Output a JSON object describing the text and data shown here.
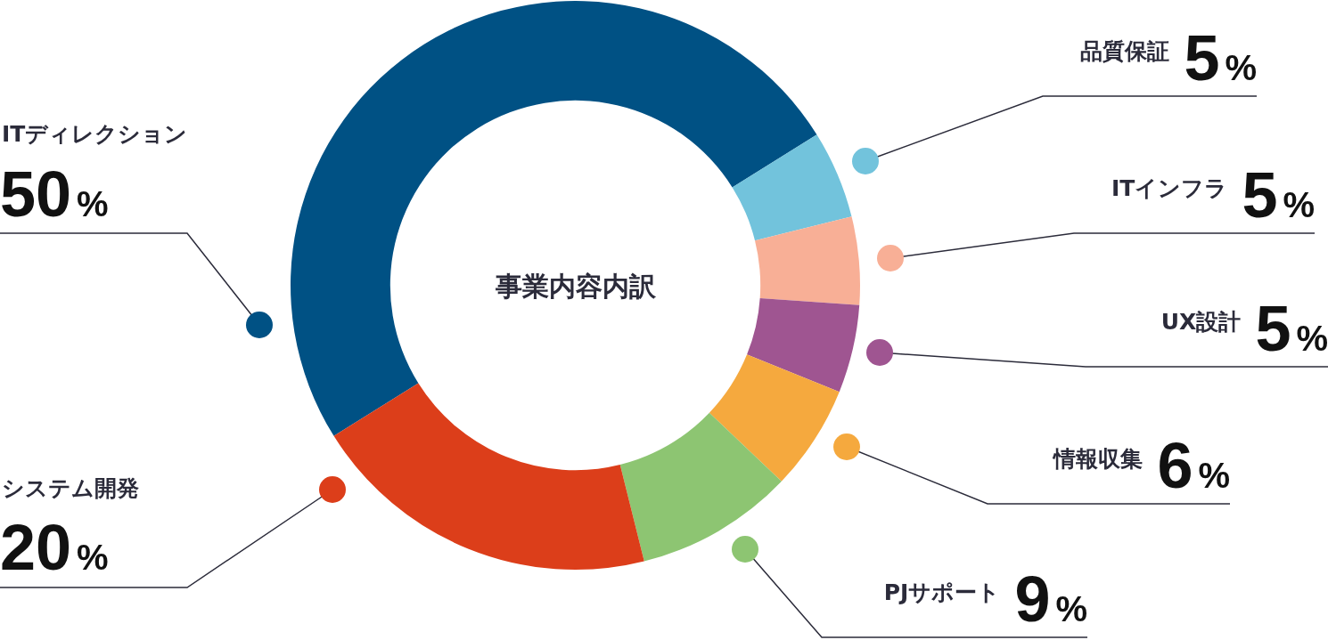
{
  "chart_data": {
    "type": "donut",
    "title": "事業内容内訳",
    "categories": [
      "ITディレクション",
      "品質保証",
      "ITインフラ",
      "UX設計",
      "情報収集",
      "PJサポート",
      "システム開発"
    ],
    "values": [
      50,
      5,
      5,
      5,
      6,
      9,
      20
    ],
    "value_labels": [
      "50%",
      "5%",
      "5%",
      "5%",
      "6%",
      "9%",
      "20%"
    ],
    "colors": [
      "#005184",
      "#72c3dc",
      "#f8af96",
      "#9f5591",
      "#f5a93e",
      "#8dc572",
      "#dc3e1a"
    ],
    "legend": false
  }
}
